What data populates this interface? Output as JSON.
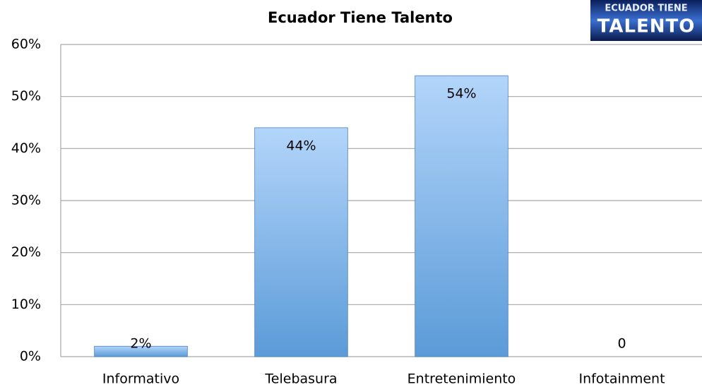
{
  "chart_data": {
    "type": "bar",
    "title": "Ecuador Tiene Talento",
    "logo": [
      "ECUADOR TIENE",
      "TALENTO"
    ],
    "categories": [
      "Informativo",
      "Telebasura",
      "Entretenimiento",
      "Infotainment"
    ],
    "values": [
      2,
      44,
      54,
      0
    ],
    "value_labels": [
      "2%",
      "44%",
      "54%",
      "0"
    ],
    "color": [
      "#b3d5fa",
      "#5b9bd8"
    ],
    "ylim": [
      0,
      60
    ],
    "yticks": [
      {
        "value": 0,
        "label": "0%"
      },
      {
        "value": 10,
        "label": "10%"
      },
      {
        "value": 20,
        "label": "20%"
      },
      {
        "value": 30,
        "label": "30%"
      },
      {
        "value": 40,
        "label": "40%"
      },
      {
        "value": 50,
        "label": "50%"
      },
      {
        "value": 60,
        "label": "60%"
      }
    ],
    "grid": true
  }
}
